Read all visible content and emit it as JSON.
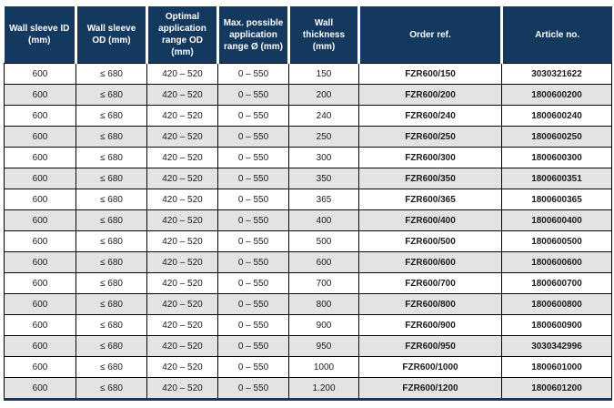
{
  "colors": {
    "header_bg": "#14395f",
    "stripe": "#e3e3e3",
    "grid": "#000000",
    "header_text": "#ffffff"
  },
  "table": {
    "headers": [
      "Wall sleeve ID (mm)",
      "Wall sleeve OD (mm)",
      "Optimal application range OD (mm)",
      "Max. possible application range Ø (mm)",
      "Wall thickness (mm)",
      "Order ref.",
      "Article no."
    ],
    "rows": [
      [
        "600",
        "≤ 680",
        "420 – 520",
        "0 – 550",
        "150",
        "FZR600/150",
        "3030321622"
      ],
      [
        "600",
        "≤ 680",
        "420 – 520",
        "0 – 550",
        "200",
        "FZR600/200",
        "1800600200"
      ],
      [
        "600",
        "≤ 680",
        "420 – 520",
        "0 – 550",
        "240",
        "FZR600/240",
        "1800600240"
      ],
      [
        "600",
        "≤ 680",
        "420 – 520",
        "0 – 550",
        "250",
        "FZR600/250",
        "1800600250"
      ],
      [
        "600",
        "≤ 680",
        "420 – 520",
        "0 – 550",
        "300",
        "FZR600/300",
        "1800600300"
      ],
      [
        "600",
        "≤ 680",
        "420 – 520",
        "0 – 550",
        "350",
        "FZR600/350",
        "1800600351"
      ],
      [
        "600",
        "≤ 680",
        "420 – 520",
        "0 – 550",
        "365",
        "FZR600/365",
        "1800600365"
      ],
      [
        "600",
        "≤ 680",
        "420 – 520",
        "0 – 550",
        "400",
        "FZR600/400",
        "1800600400"
      ],
      [
        "600",
        "≤ 680",
        "420 – 520",
        "0 – 550",
        "500",
        "FZR600/500",
        "1800600500"
      ],
      [
        "600",
        "≤ 680",
        "420 – 520",
        "0 – 550",
        "600",
        "FZR600/600",
        "1800600600"
      ],
      [
        "600",
        "≤ 680",
        "420 – 520",
        "0 – 550",
        "700",
        "FZR600/700",
        "1800600700"
      ],
      [
        "600",
        "≤ 680",
        "420 – 520",
        "0 – 550",
        "800",
        "FZR600/800",
        "1800600800"
      ],
      [
        "600",
        "≤ 680",
        "420 – 520",
        "0 – 550",
        "900",
        "FZR600/900",
        "1800600900"
      ],
      [
        "600",
        "≤ 680",
        "420 – 520",
        "0 – 550",
        "950",
        "FZR600/950",
        "3030342996"
      ],
      [
        "600",
        "≤ 680",
        "420 – 520",
        "0 – 550",
        "1000",
        "FZR600/1000",
        "1800601000"
      ],
      [
        "600",
        "≤ 680",
        "420 – 520",
        "0 – 550",
        "1.200",
        "FZR600/1200",
        "1800601200"
      ]
    ]
  }
}
